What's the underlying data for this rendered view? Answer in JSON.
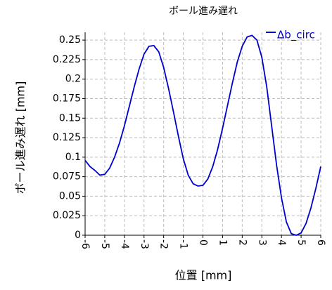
{
  "chart_data": {
    "type": "line",
    "title": "ボール進み遅れ",
    "xlabel": "位置 [mm]",
    "ylabel": "ボール進み遅れ [mm]",
    "x": [
      -6,
      -5.75,
      -5.5,
      -5.25,
      -5,
      -4.75,
      -4.5,
      -4.25,
      -4,
      -3.75,
      -3.5,
      -3.25,
      -3,
      -2.75,
      -2.5,
      -2.25,
      -2,
      -1.75,
      -1.5,
      -1.25,
      -1,
      -0.75,
      -0.5,
      -0.25,
      0,
      0.25,
      0.5,
      0.75,
      1,
      1.25,
      1.5,
      1.75,
      2,
      2.25,
      2.5,
      2.75,
      3,
      3.25,
      3.5,
      3.75,
      4,
      4.25,
      4.5,
      4.75,
      5,
      5.25,
      5.5,
      5.75,
      6
    ],
    "series": [
      {
        "name": "Δb_circ",
        "color": "#0000cc",
        "values": [
          0.096,
          0.088,
          0.083,
          0.077,
          0.078,
          0.086,
          0.1,
          0.118,
          0.14,
          0.165,
          0.19,
          0.213,
          0.232,
          0.242,
          0.243,
          0.235,
          0.215,
          0.188,
          0.158,
          0.127,
          0.098,
          0.077,
          0.066,
          0.063,
          0.064,
          0.072,
          0.088,
          0.11,
          0.137,
          0.166,
          0.195,
          0.222,
          0.242,
          0.254,
          0.256,
          0.25,
          0.228,
          0.19,
          0.14,
          0.09,
          0.048,
          0.017,
          0.002,
          0,
          0.003,
          0.015,
          0.035,
          0.06,
          0.088
        ]
      }
    ],
    "xlim": [
      -6,
      6
    ],
    "xticks": [
      -6,
      -5,
      -4,
      -3,
      -2,
      -1,
      0,
      1,
      2,
      3,
      4,
      5,
      6
    ],
    "ylim": [
      0,
      0.26
    ],
    "yticks": [
      0,
      0.025,
      0.05,
      0.075,
      0.1,
      0.125,
      0.15,
      0.175,
      0.2,
      0.225,
      0.25
    ],
    "grid": true,
    "legend": "upper right"
  }
}
